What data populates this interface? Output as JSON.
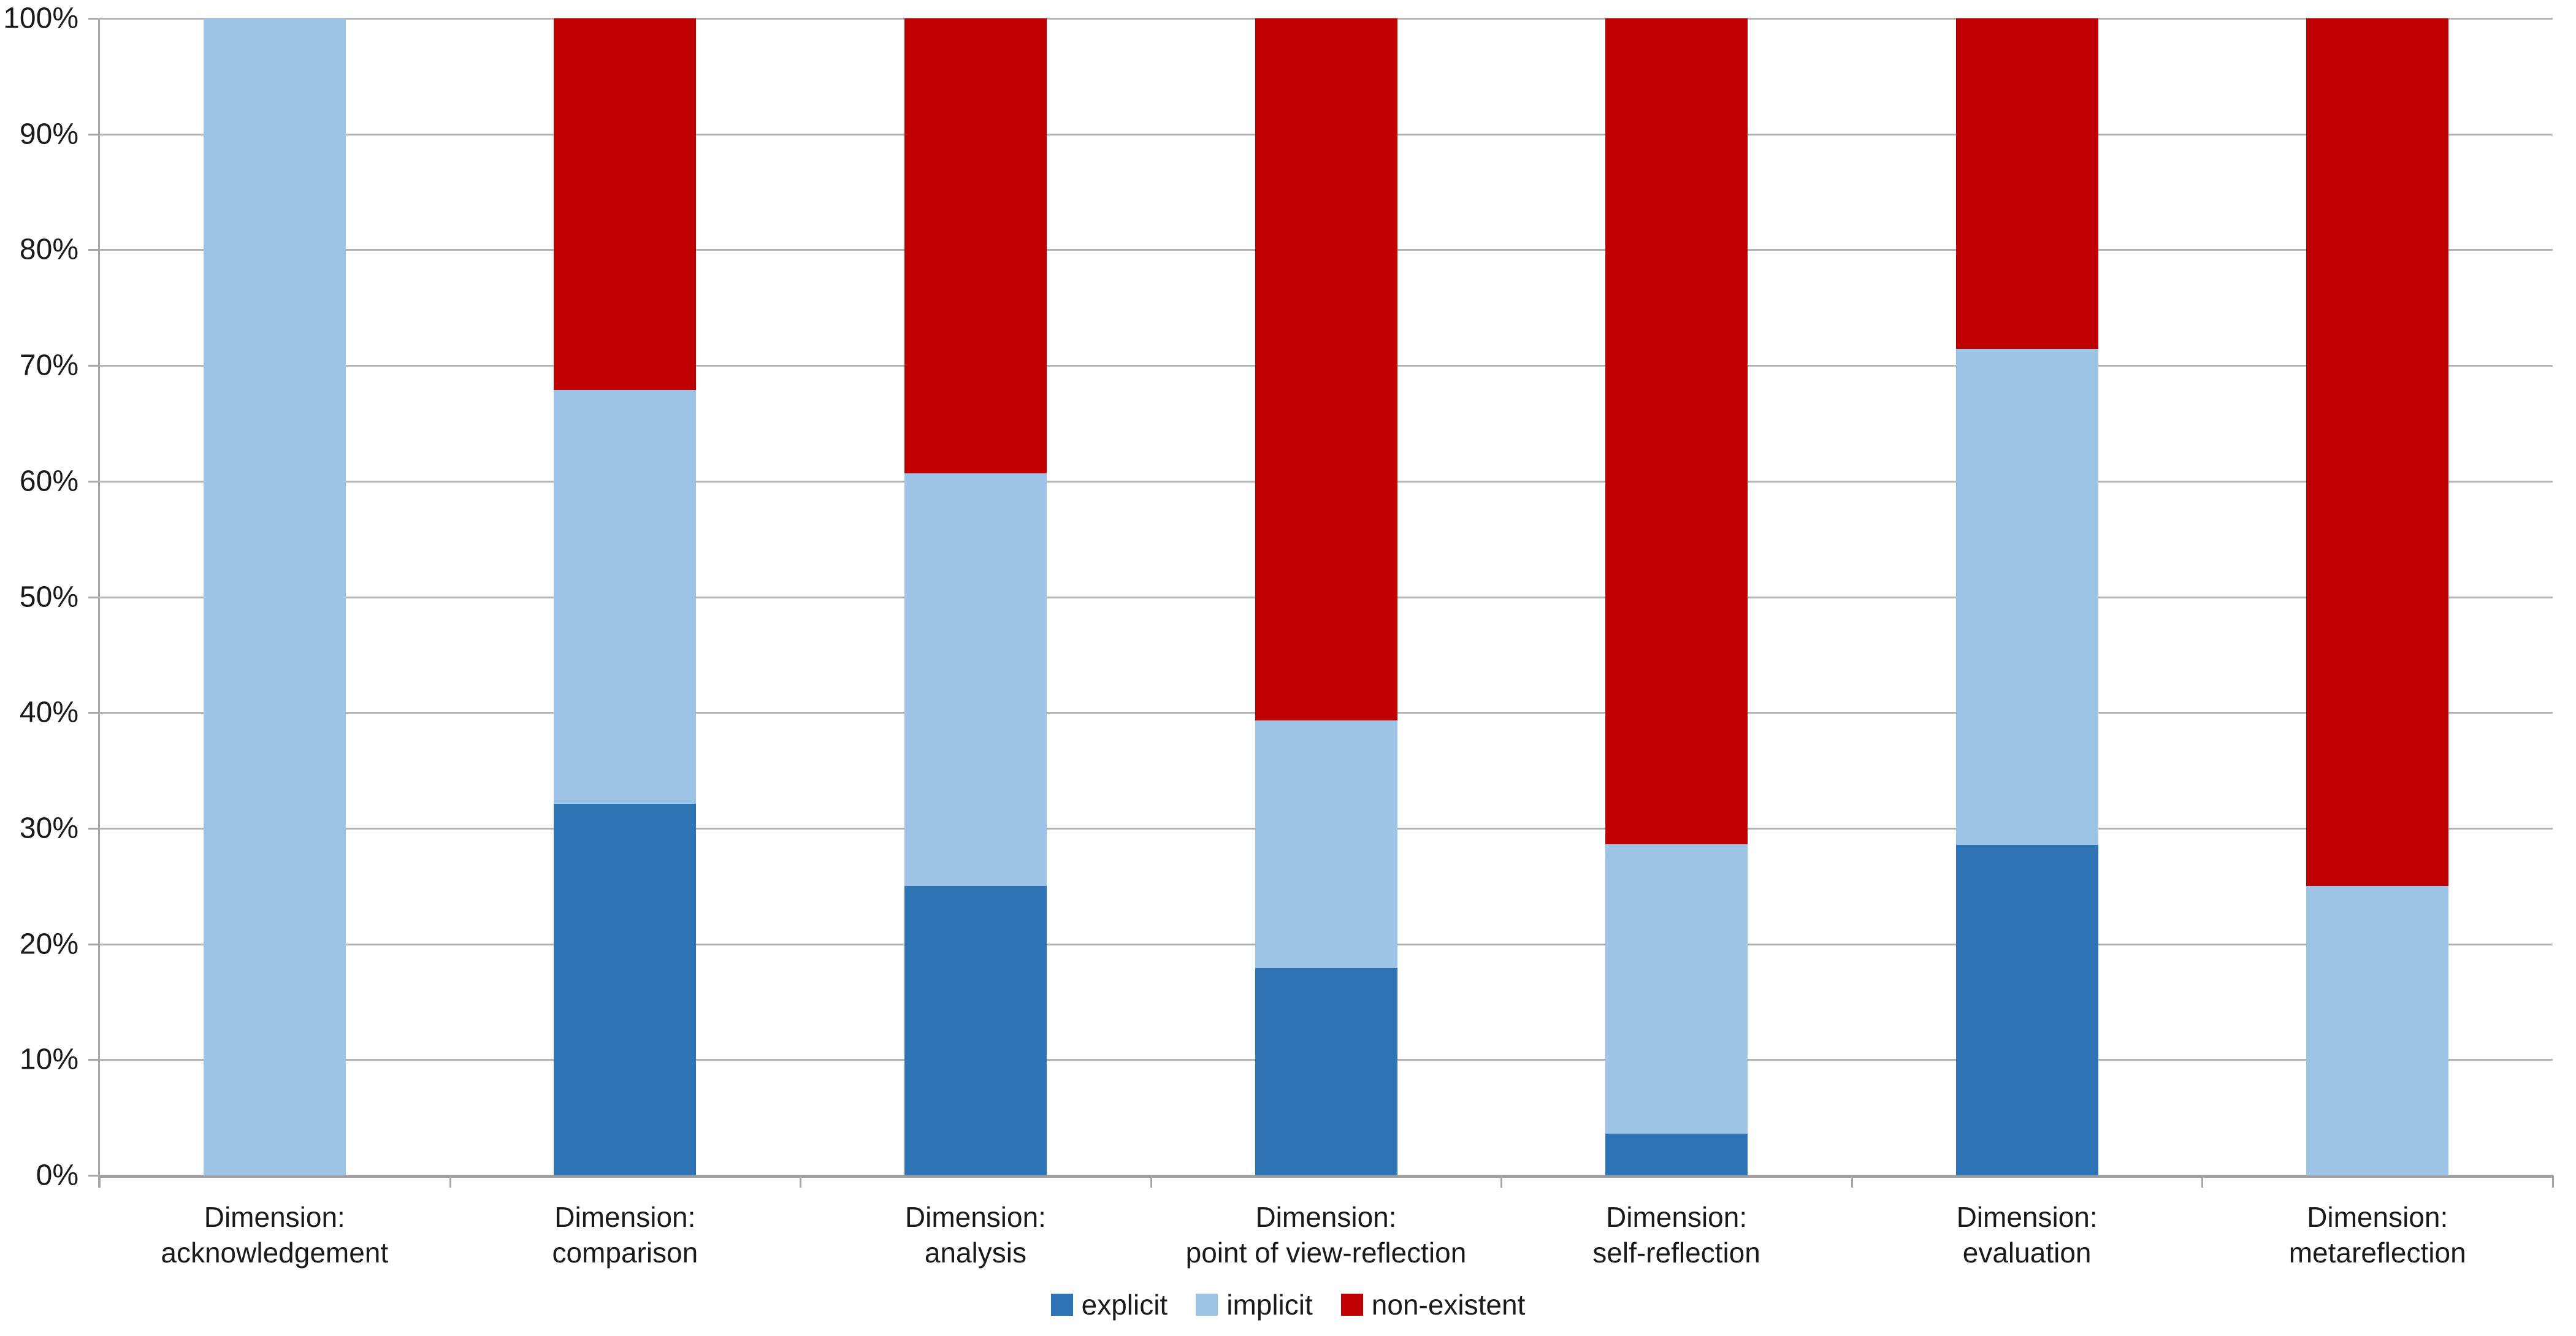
{
  "chart_data": {
    "type": "bar",
    "subtype": "100-percent-stacked-column",
    "title": "",
    "xlabel": "",
    "ylabel": "",
    "grid": true,
    "legend_position": "bottom",
    "y_axis": {
      "min": 0,
      "max": 100,
      "step": 10,
      "tick_labels": [
        "0%",
        "10%",
        "20%",
        "30%",
        "40%",
        "50%",
        "60%",
        "70%",
        "80%",
        "90%",
        "100%"
      ]
    },
    "categories": [
      {
        "line1": "Dimension:",
        "line2": "acknowledgement"
      },
      {
        "line1": "Dimension:",
        "line2": "comparison"
      },
      {
        "line1": "Dimension:",
        "line2": "analysis"
      },
      {
        "line1": "Dimension:",
        "line2": "point of view-reflection"
      },
      {
        "line1": "Dimension:",
        "line2": "self-reflection"
      },
      {
        "line1": "Dimension:",
        "line2": "evaluation"
      },
      {
        "line1": "Dimension:",
        "line2": "metareflection"
      }
    ],
    "series": [
      {
        "name": "explicit",
        "color": "#2E74B5",
        "values": [
          0,
          32.1,
          25.0,
          17.9,
          3.6,
          28.6,
          0
        ]
      },
      {
        "name": "implicit",
        "color": "#9DC3E6",
        "values": [
          100,
          35.7,
          35.7,
          21.4,
          25.0,
          42.9,
          25.0
        ]
      },
      {
        "name": "non-existent",
        "color": "#C00000",
        "values": [
          0,
          32.1,
          39.3,
          60.7,
          71.4,
          28.6,
          75.0
        ]
      }
    ]
  },
  "style_colors": {
    "gridline": "#b3b3b3",
    "axis": "#a6a6a6",
    "text": "#1a1a1a",
    "background": "#ffffff"
  }
}
